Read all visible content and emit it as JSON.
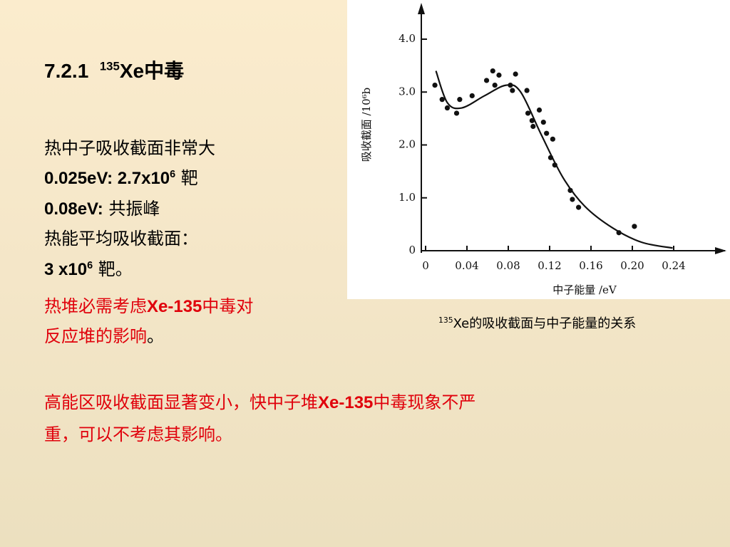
{
  "slide": {
    "title": [
      "7.2.1",
      "135",
      "Xe中毒"
    ],
    "lines": [
      [
        "热中子吸收截面非常大"
      ],
      [
        "0.025eV: 2.7x10",
        "6",
        " 靶"
      ],
      [
        "0.08eV:",
        " 共振峰"
      ],
      [
        "热能平均吸收截面："
      ],
      [
        "3 x10",
        "6",
        " 靶。"
      ],
      [
        "热堆必需考虑",
        "Xe-135",
        "中毒对"
      ],
      [
        "反应堆的影响",
        "。"
      ],
      [
        "高能区吸收截面显著变小，快中子堆",
        "Xe-135",
        "中毒现象不严"
      ],
      [
        "重，可以不考虑其影响。"
      ]
    ],
    "caption": [
      "135",
      "Xe的吸收截面与中子能量的关系"
    ]
  },
  "chart_data": {
    "type": "scatter",
    "xlabel": "中子能量 /eV",
    "ylabel": "吸收截面 /10⁶b",
    "xlim": [
      0,
      0.24
    ],
    "ylim": [
      0,
      4
    ],
    "xticks": [
      0,
      0.04,
      0.08,
      0.12,
      0.16,
      0.2,
      0.24
    ],
    "xtick_labels": [
      "0",
      "0.04",
      "0.08",
      "0.12",
      "0.16",
      "0.20",
      "0.24"
    ],
    "yticks": [
      0,
      {
        "value": 1,
        "label": "1.0"
      },
      {
        "value": 2,
        "label": "2.0"
      },
      {
        "value": 3,
        "label": "3.0"
      },
      {
        "value": 4,
        "label": "4.0"
      }
    ],
    "color": "#111111",
    "points": {
      "x": [
        0.009,
        0.016,
        0.021,
        0.03,
        0.033,
        0.045,
        0.059,
        0.065,
        0.067,
        0.071,
        0.082,
        0.084,
        0.087,
        0.098,
        0.099,
        0.103,
        0.104,
        0.11,
        0.114,
        0.117,
        0.123,
        0.121,
        0.125,
        0.14,
        0.142,
        0.148,
        0.187,
        0.202
      ],
      "y": [
        3.13,
        2.86,
        2.7,
        2.6,
        2.86,
        2.93,
        3.22,
        3.4,
        3.13,
        3.32,
        3.13,
        3.03,
        3.34,
        3.03,
        2.6,
        2.46,
        2.35,
        2.66,
        2.43,
        2.22,
        2.11,
        1.76,
        1.62,
        1.14,
        0.97,
        0.82,
        0.34,
        0.46
      ]
    },
    "curve": {
      "x": [
        0.01,
        0.021,
        0.035,
        0.057,
        0.078,
        0.092,
        0.112,
        0.133,
        0.154,
        0.181,
        0.209,
        0.239
      ],
      "y": [
        3.4,
        2.8,
        2.7,
        2.93,
        3.13,
        3.0,
        2.19,
        1.38,
        0.84,
        0.43,
        0.16,
        0.05
      ]
    }
  }
}
